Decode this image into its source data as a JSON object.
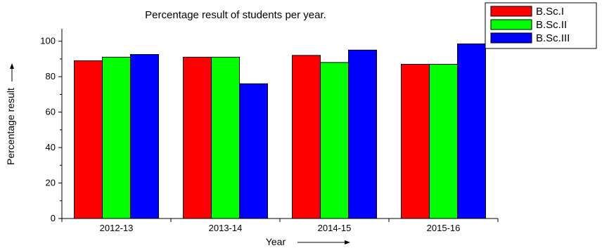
{
  "chart_data": {
    "type": "bar",
    "title": "Percentage result of students per year.",
    "xlabel": "Year",
    "ylabel": "Percentage result",
    "categories": [
      "2012-13",
      "2013-14",
      "2014-15",
      "2015-16"
    ],
    "series": [
      {
        "name": "B.Sc.I",
        "color": "#ff0000",
        "values": [
          89,
          91,
          92,
          87
        ]
      },
      {
        "name": "B.Sc.II",
        "color": "#00ff00",
        "values": [
          91,
          91,
          88,
          87
        ]
      },
      {
        "name": "B.Sc.III",
        "color": "#0000ff",
        "values": [
          92.5,
          76,
          95,
          98.5
        ]
      }
    ],
    "ylim": [
      0,
      107
    ],
    "yticks": [
      0,
      20,
      40,
      60,
      80,
      100
    ],
    "grid": false,
    "legend_position": "top-right"
  }
}
